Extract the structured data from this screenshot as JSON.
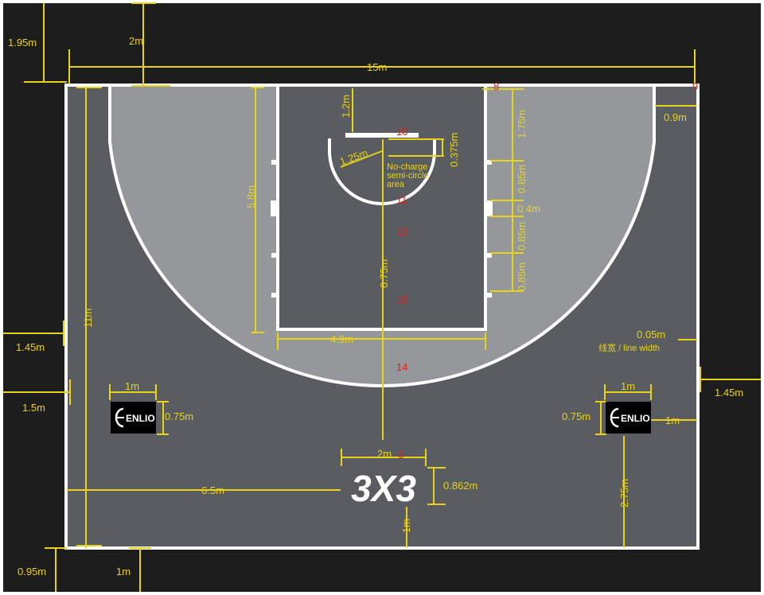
{
  "dimensions": {
    "top_offset": "1.95m",
    "top_corner": "2m",
    "court_width": "15m",
    "three_pt_offset": "0.9m",
    "restricted_depth": "1.2m",
    "backboard_offset": "0.375m",
    "semicircle_radius": "1.25m",
    "no_charge_label": [
      "No-charge",
      "semi-circle",
      "area"
    ],
    "lane_mark_175": "1.75m",
    "lane_mark_085a": "0.85m",
    "lane_mark_04": "0.4m",
    "lane_mark_085b": "0.85m",
    "lane_mark_085c": "0.85m",
    "lane_length": "5.8m",
    "center_line": "6.75m",
    "lane_width": "4.9m",
    "court_length": "11m",
    "side_outer_left": "1.45m",
    "side_outer_left2": "1.5m",
    "line_width_value": "0.05m",
    "line_width_label": "线宽 / line width",
    "side_outer_right": "1.45m",
    "logo_left_w": "1m",
    "logo_left_h": "0.75m",
    "logo_right_w": "1m",
    "logo_right_h": "0.75m",
    "logo_right_offset": "1m",
    "center_logo_w": "2m",
    "center_logo_h": "0.862m",
    "center_logo_left": "6.5m",
    "center_logo_bottom": "1m",
    "right_logo_bottom": "2.75m",
    "bottom_offset": "0.95m",
    "bottom_corner": "1m"
  },
  "logos": {
    "sponsor": "ENLIO",
    "center": "3X3"
  },
  "markers": [
    "8",
    "9",
    "10",
    "11",
    "12",
    "13",
    "14",
    "6"
  ],
  "colors": {
    "frame": "#1d1d1d",
    "court": "#595d61",
    "two_point": "#94989b",
    "line": "#ffffff",
    "dimension": "#e8d21a",
    "marker": "#e0201a"
  }
}
